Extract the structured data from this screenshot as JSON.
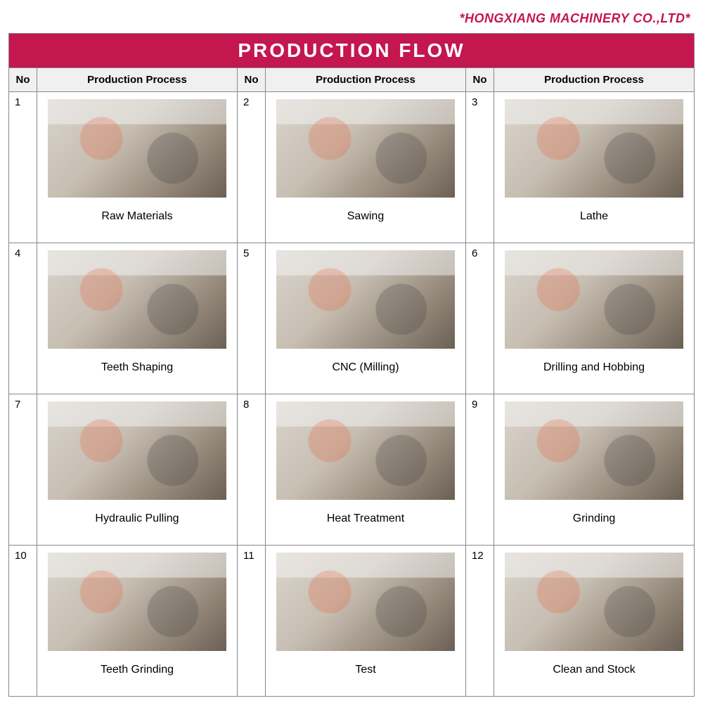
{
  "company_name": "*HONGXIANG MACHINERY CO.,LTD*",
  "title": "PRODUCTION FLOW",
  "colors": {
    "brand": "#c4164f",
    "header_bg": "#f0f0f0",
    "border": "#888888",
    "text": "#000000",
    "white": "#ffffff"
  },
  "columns": {
    "no_header": "No",
    "process_header": "Production Process"
  },
  "steps": [
    {
      "no": "1",
      "label": "Raw Materials"
    },
    {
      "no": "2",
      "label": "Sawing"
    },
    {
      "no": "3",
      "label": "Lathe"
    },
    {
      "no": "4",
      "label": "Teeth Shaping"
    },
    {
      "no": "5",
      "label": "CNC (Milling)"
    },
    {
      "no": "6",
      "label": "Drilling and Hobbing"
    },
    {
      "no": "7",
      "label": "Hydraulic Pulling"
    },
    {
      "no": "8",
      "label": "Heat Treatment"
    },
    {
      "no": "9",
      "label": "Grinding"
    },
    {
      "no": "10",
      "label": "Teeth Grinding"
    },
    {
      "no": "11",
      "label": "Test"
    },
    {
      "no": "12",
      "label": "Clean and Stock"
    }
  ],
  "layout": {
    "grid_cols": 3,
    "grid_rows": 4,
    "image_aspect": "landscape"
  }
}
